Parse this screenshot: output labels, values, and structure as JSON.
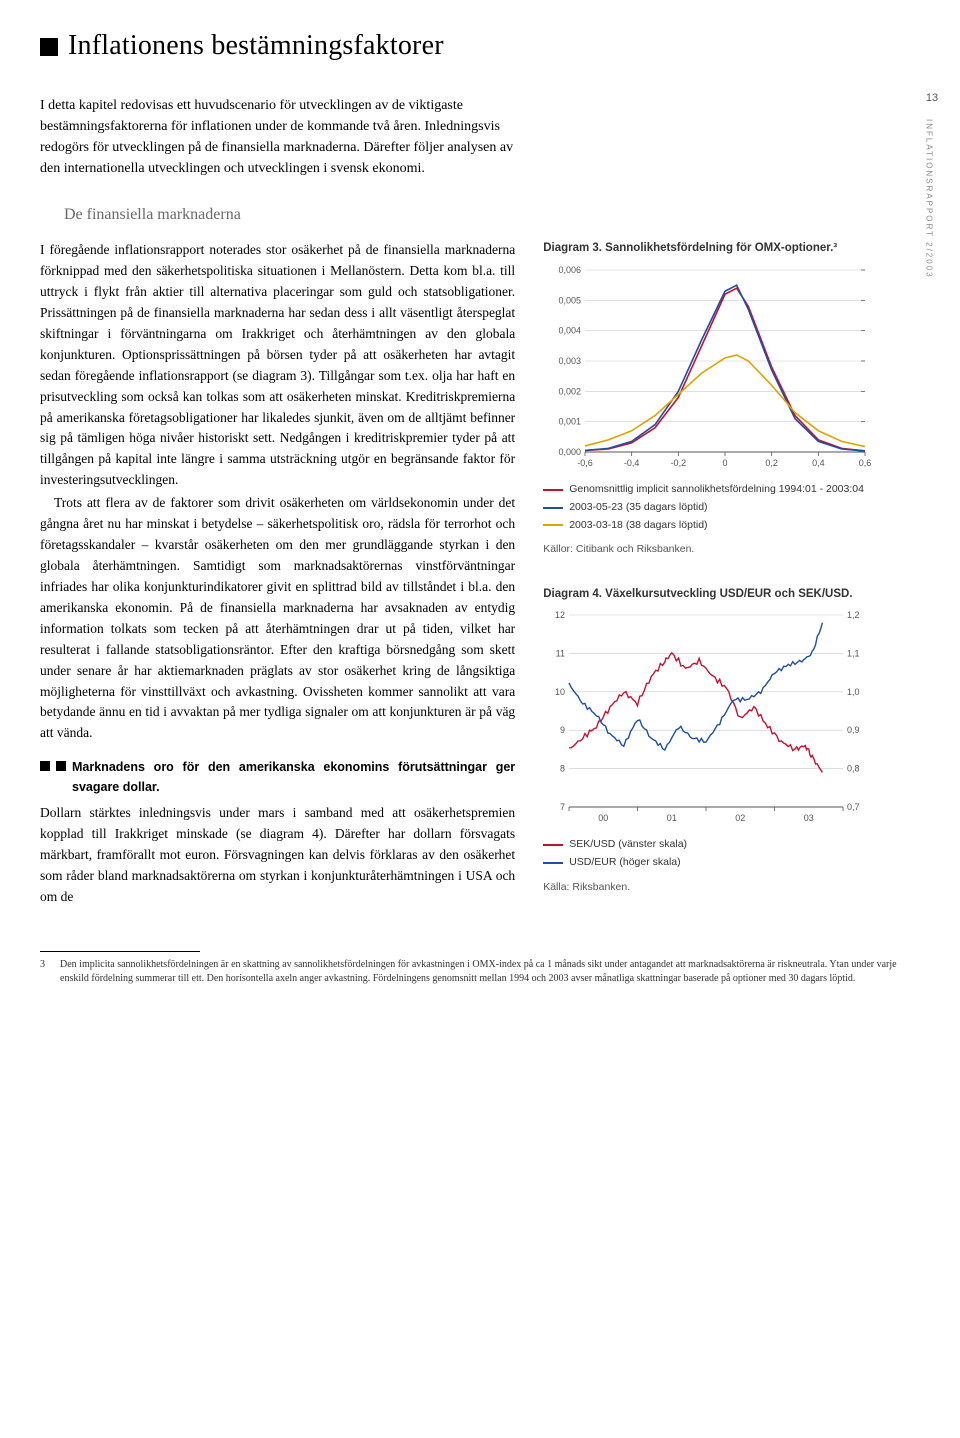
{
  "page_number": "13",
  "side_label": "INFLATIONSRAPPORT 2/2003",
  "title": "Inflationens bestämningsfaktorer",
  "intro": "I detta kapitel redovisas ett huvudscenario för utvecklingen av de viktigaste bestämningsfaktorerna för inflationen under de kommande två åren. Inledningsvis redogörs för utvecklingen på de finansiella marknaderna. Därefter följer analysen av den internationella utvecklingen och utvecklingen i svensk ekonomi.",
  "subheading": "De finansiella marknaderna",
  "body_p1": "I föregående inflationsrapport noterades stor osäkerhet på de finansiella marknaderna förknippad med den säkerhetspolitiska situationen i Mellanöstern. Detta kom bl.a. till uttryck i flykt från aktier till alternativa placeringar som guld och statsobligationer. Prissättningen på de finansiella marknaderna har sedan dess i allt väsentligt återspeglat skiftningar i förväntningarna om Irakkriget och återhämtningen av den globala konjunkturen. Optionsprissättningen på börsen tyder på att osäkerheten har avtagit sedan föregående inflationsrapport (se diagram 3). Tillgångar som t.ex. olja har haft en prisutveckling som också kan tolkas som att osäkerheten minskat. Kreditriskpremierna på amerikanska företagsobligationer har likaledes sjunkit, även om de alltjämt befinner sig på tämligen höga nivåer historiskt sett. Nedgången i kreditriskpremier tyder på att tillgången på kapital inte längre i samma utsträckning utgör en begränsande faktor för investeringsutvecklingen.",
  "body_p2": "Trots att flera av de faktorer som drivit osäkerheten om världsekonomin under det gångna året nu har minskat i betydelse – säkerhetspolitisk oro, rädsla för terrorhot och företagsskandaler – kvarstår osäkerheten om den mer grundläggande styrkan i den globala återhämtningen. Samtidigt som marknadsaktörernas vinstförväntningar infriades har olika konjunkturindikatorer givit en splittrad bild av tillståndet i bl.a. den amerikanska ekonomin. På de finansiella marknaderna har avsaknaden av entydig information tolkats som tecken på att återhämtningen drar ut på tiden, vilket har resulterat i fallande statsobligationsräntor. Efter den kraftiga börsnedgång som skett under senare år har aktiemarknaden präglats av stor osäkerhet kring de långsiktiga möjligheterna för vinsttillväxt och avkastning. Ovissheten kommer sannolikt att vara betydande ännu en tid i avvaktan på mer tydliga signaler om att konjunkturen är på väg att vända.",
  "sub2": "Marknadens oro för den amerikanska ekonomins förutsättningar ger svagare dollar.",
  "body_p3": "Dollarn stärktes inledningsvis under mars i samband med att osäkerhetspremien kopplad till Irakkriget minskade (se diagram 4). Därefter har dollarn försvagats märkbart, framförallt mot euron. Försvagningen kan delvis förklaras av den osäkerhet som råder bland marknadsaktörerna om styrkan i konjunkturåterhämtningen i USA och om de",
  "footnote": {
    "num": "3",
    "text": "Den implicita sannolikhetsfördelningen är en skattning av sannolikhetsfördelningen för avkastningen i OMX-index på ca 1 månads sikt under antagandet att marknadsaktörerna är riskneutrala. Ytan under varje enskild fördelning summerar till ett. Den horisontella axeln anger avkastning. Fördelningens genomsnitt mellan 1994 och 2003 avser månatliga skattningar baserade på optioner med 30 dagars löptid."
  },
  "diagram3": {
    "title": "Diagram 3. Sannolikhetsfördelning för OMX-optioner.³",
    "type": "line",
    "xlim": [
      -0.6,
      0.6
    ],
    "xticks": [
      "-0,6",
      "-0,4",
      "-0,2",
      "0",
      "0,2",
      "0,4",
      "0,6"
    ],
    "ylim": [
      0,
      0.006
    ],
    "yticks": [
      "0,000",
      "0,001",
      "0,002",
      "0,003",
      "0,004",
      "0,005",
      "0,006"
    ],
    "series": [
      {
        "label": "Genomsnittlig implicit sannolikhetsfördelning 1994:01 - 2003:04",
        "color": "#c8102e",
        "points": [
          [
            -0.6,
            5e-05
          ],
          [
            -0.5,
            0.0001
          ],
          [
            -0.4,
            0.0003
          ],
          [
            -0.3,
            0.0008
          ],
          [
            -0.2,
            0.0018
          ],
          [
            -0.1,
            0.0035
          ],
          [
            0,
            0.0052
          ],
          [
            0.05,
            0.0054
          ],
          [
            0.1,
            0.0048
          ],
          [
            0.2,
            0.0028
          ],
          [
            0.3,
            0.0012
          ],
          [
            0.4,
            0.0004
          ],
          [
            0.5,
            0.00012
          ],
          [
            0.6,
            4e-05
          ]
        ]
      },
      {
        "label": "2003-05-23 (35 dagars löptid)",
        "color": "#1f4fa3",
        "points": [
          [
            -0.6,
            5e-05
          ],
          [
            -0.5,
            0.00012
          ],
          [
            -0.4,
            0.00035
          ],
          [
            -0.3,
            0.0009
          ],
          [
            -0.2,
            0.002
          ],
          [
            -0.1,
            0.0037
          ],
          [
            0,
            0.0053
          ],
          [
            0.05,
            0.0055
          ],
          [
            0.1,
            0.0047
          ],
          [
            0.2,
            0.0027
          ],
          [
            0.3,
            0.0011
          ],
          [
            0.4,
            0.00035
          ],
          [
            0.5,
            0.0001
          ],
          [
            0.6,
            3e-05
          ]
        ]
      },
      {
        "label": "2003-03-18 (38 dagars löptid)",
        "color": "#e0a400",
        "points": [
          [
            -0.6,
            0.0002
          ],
          [
            -0.5,
            0.0004
          ],
          [
            -0.4,
            0.0007
          ],
          [
            -0.3,
            0.0012
          ],
          [
            -0.2,
            0.0019
          ],
          [
            -0.1,
            0.0026
          ],
          [
            0,
            0.0031
          ],
          [
            0.05,
            0.0032
          ],
          [
            0.1,
            0.003
          ],
          [
            0.2,
            0.0022
          ],
          [
            0.3,
            0.0013
          ],
          [
            0.4,
            0.0007
          ],
          [
            0.5,
            0.00035
          ],
          [
            0.6,
            0.00018
          ]
        ]
      }
    ],
    "background": "#ffffff",
    "grid_color": "#c9c9c9",
    "axis_color": "#555555",
    "line_width": 1.6,
    "source": "Källor: Citibank och Riksbanken."
  },
  "diagram4": {
    "title": "Diagram 4. Växelkursutveckling USD/EUR och SEK/USD.",
    "type": "line-dual-axis",
    "xlim": [
      0,
      4
    ],
    "xticks": [
      "00",
      "01",
      "02",
      "03"
    ],
    "left_ylim": [
      7,
      12
    ],
    "left_yticks": [
      "7",
      "8",
      "9",
      "10",
      "11",
      "12"
    ],
    "right_ylim": [
      0.7,
      1.2
    ],
    "right_yticks": [
      "0,7",
      "0,8",
      "0,9",
      "1,0",
      "1,1",
      "1,2"
    ],
    "series": [
      {
        "label": "SEK/USD (vänster skala)",
        "color": "#c8102e",
        "axis": "left",
        "points": [
          [
            0,
            8.5
          ],
          [
            0.2,
            8.8
          ],
          [
            0.4,
            9.1
          ],
          [
            0.6,
            9.6
          ],
          [
            0.8,
            10.0
          ],
          [
            1.0,
            9.7
          ],
          [
            1.2,
            10.4
          ],
          [
            1.4,
            10.8
          ],
          [
            1.5,
            11.0
          ],
          [
            1.7,
            10.6
          ],
          [
            1.9,
            10.8
          ],
          [
            2.1,
            10.4
          ],
          [
            2.3,
            10.1
          ],
          [
            2.5,
            9.3
          ],
          [
            2.7,
            9.6
          ],
          [
            2.9,
            9.1
          ],
          [
            3.1,
            8.7
          ],
          [
            3.3,
            8.5
          ],
          [
            3.45,
            8.6
          ],
          [
            3.55,
            8.3
          ],
          [
            3.7,
            7.9
          ]
        ]
      },
      {
        "label": "USD/EUR (höger skala)",
        "color": "#1f4fa3",
        "axis": "right",
        "points": [
          [
            0,
            1.02
          ],
          [
            0.2,
            0.97
          ],
          [
            0.4,
            0.94
          ],
          [
            0.6,
            0.89
          ],
          [
            0.8,
            0.86
          ],
          [
            1.0,
            0.93
          ],
          [
            1.2,
            0.88
          ],
          [
            1.4,
            0.85
          ],
          [
            1.6,
            0.91
          ],
          [
            1.8,
            0.88
          ],
          [
            2.0,
            0.87
          ],
          [
            2.2,
            0.92
          ],
          [
            2.4,
            0.98
          ],
          [
            2.6,
            0.98
          ],
          [
            2.8,
            1.0
          ],
          [
            3.0,
            1.05
          ],
          [
            3.2,
            1.07
          ],
          [
            3.4,
            1.08
          ],
          [
            3.55,
            1.1
          ],
          [
            3.7,
            1.18
          ]
        ]
      }
    ],
    "background": "#ffffff",
    "grid_color": "#c9c9c9",
    "axis_color": "#555555",
    "line_width": 1.4,
    "source": "Källa: Riksbanken."
  }
}
